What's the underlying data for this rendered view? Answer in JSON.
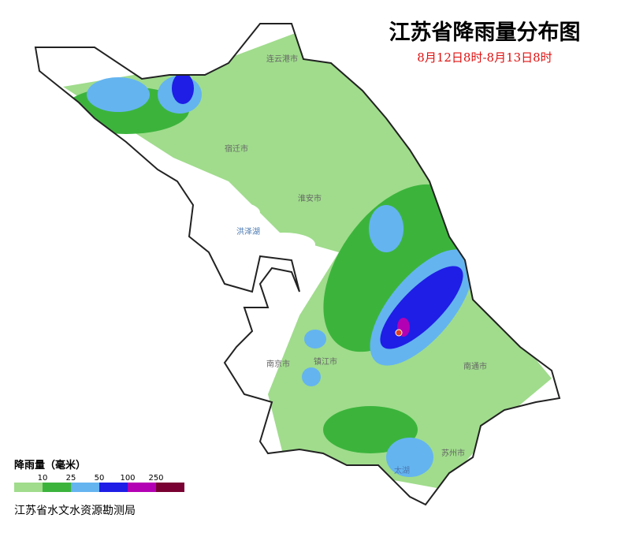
{
  "title": "江苏省降雨量分布图",
  "subtitle": "8月12日8时-8月13日8时",
  "legend": {
    "title": "降雨量（毫米）",
    "ticks": [
      10,
      25,
      50,
      100,
      250
    ],
    "colors": [
      "#a0dc8c",
      "#3cb43c",
      "#64b4f0",
      "#1e1ee6",
      "#b400b4",
      "#780032"
    ]
  },
  "source": "江苏省水文水资源勘测局",
  "cities": [
    "宿迁市",
    "淮安市",
    "南京市",
    "镇江市",
    "南通市",
    "苏州市",
    "连云港市"
  ],
  "lakes": [
    "洪泽湖",
    "太湖"
  ]
}
